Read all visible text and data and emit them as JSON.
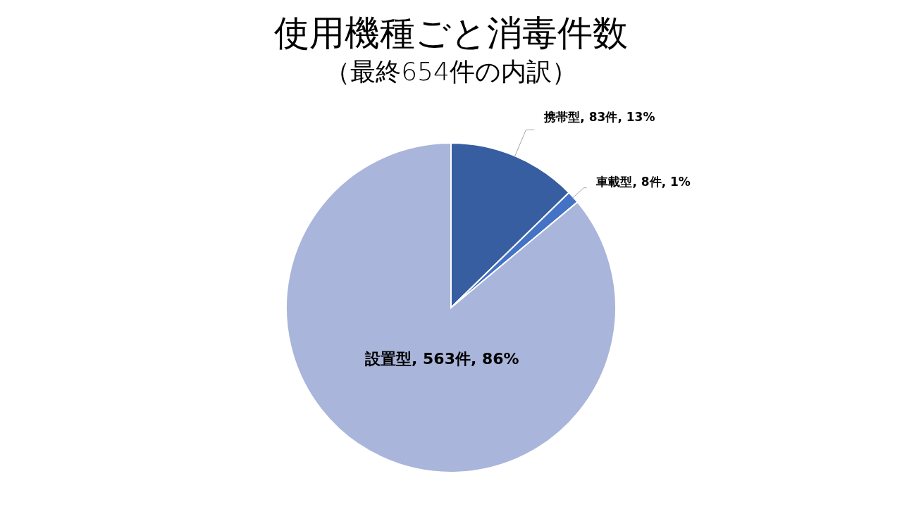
{
  "chart_data": {
    "type": "pie",
    "title": "使用機種ごと消毒件数",
    "subtitle": "（最終654件の内訳）",
    "categories": [
      "携帯型",
      "車載型",
      "設置型"
    ],
    "values": [
      83,
      8,
      563
    ],
    "value_labels": [
      "83件, 13%",
      "8件, 1%",
      "563件, 86%"
    ],
    "colors": [
      "#365ea0",
      "#4472c4",
      "#a9b5da"
    ]
  }
}
